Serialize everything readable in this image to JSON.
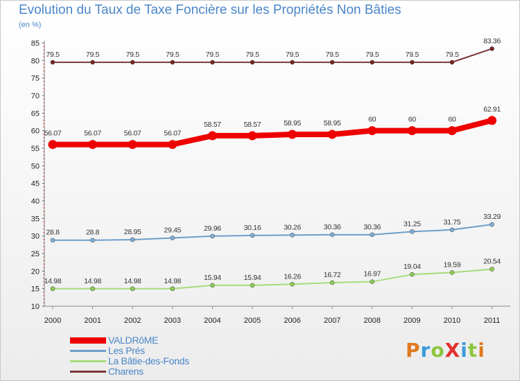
{
  "header": {
    "title": "Evolution du Taux de Taxe Foncière sur les Propriétés Non Bâties",
    "unit": "(en %)"
  },
  "logo": {
    "text": "ProXiti",
    "letter_colors": [
      "#e07b20",
      "#3a9ad9",
      "#8cc63f",
      "#e03030",
      "#3a9ad9",
      "#8cc63f",
      "#e07b20"
    ]
  },
  "chart_data": {
    "type": "line",
    "title": "Evolution du Taux de Taxe Foncière sur les Propriétés Non Bâties",
    "ylabel": "(en %)",
    "xlabel": "",
    "categories": [
      "2000",
      "2001",
      "2002",
      "2003",
      "2004",
      "2005",
      "2006",
      "2007",
      "2008",
      "2009",
      "2010",
      "2011"
    ],
    "ylim": [
      10,
      85
    ],
    "yticks": [
      10,
      15,
      20,
      25,
      30,
      35,
      40,
      45,
      50,
      55,
      60,
      65,
      70,
      75,
      80,
      85
    ],
    "grid": false,
    "legend_position": "bottom-left",
    "series": [
      {
        "name": "VALDRôME",
        "color": "#ee0000",
        "marker_fill": "#ee0000",
        "emphasis": true,
        "values": [
          56.07,
          56.07,
          56.07,
          56.07,
          58.57,
          58.57,
          58.95,
          58.95,
          60,
          60,
          60,
          62.91
        ],
        "labels": [
          "56.07",
          "56.07",
          "56.07",
          "56.07",
          "58.57",
          "58.57",
          "58.95",
          "58.95",
          "60",
          "60",
          "60",
          "62.91"
        ]
      },
      {
        "name": "Les Prés",
        "color": "#6d9ec9",
        "marker_fill": "#7db0de",
        "emphasis": false,
        "values": [
          28.8,
          28.8,
          28.95,
          29.45,
          29.96,
          30.16,
          30.26,
          30.36,
          30.36,
          31.25,
          31.75,
          33.29
        ],
        "labels": [
          "28.8",
          "28.8",
          "28.95",
          "29.45",
          "29.96",
          "30.16",
          "30.26",
          "30.36",
          "30.36",
          "31.25",
          "31.75",
          "33.29"
        ]
      },
      {
        "name": "La Bâtie-des-Fonds",
        "color": "#a6db7a",
        "marker_fill": "#8fd14f",
        "emphasis": false,
        "values": [
          14.98,
          14.98,
          14.98,
          14.98,
          15.94,
          15.94,
          16.26,
          16.72,
          16.97,
          19.04,
          19.59,
          20.54
        ],
        "labels": [
          "14.98",
          "14.98",
          "14.98",
          "14.98",
          "15.94",
          "15.94",
          "16.26",
          "16.72",
          "16.97",
          "19.04",
          "19.59",
          "20.54"
        ]
      },
      {
        "name": "Charens",
        "color": "#7a3535",
        "marker_fill": "#7a2020",
        "emphasis": false,
        "values": [
          79.5,
          79.5,
          79.5,
          79.5,
          79.5,
          79.5,
          79.5,
          79.5,
          79.5,
          79.5,
          79.5,
          83.36
        ],
        "labels": [
          "79.5",
          "79.5",
          "79.5",
          "79.5",
          "79.5",
          "79.5",
          "79.5",
          "79.5",
          "79.5",
          "79.5",
          "79.5",
          "83.36"
        ]
      }
    ]
  }
}
